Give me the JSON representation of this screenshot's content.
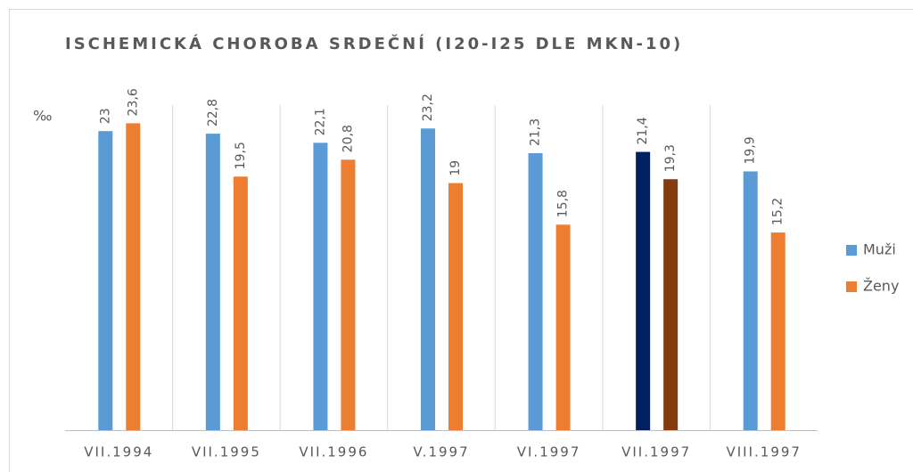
{
  "chart_data": {
    "type": "bar",
    "title": "ISCHEMICKÁ CHOROBA SRDEČNÍ (I20-I25 DLE MKN-10)",
    "y_label": "‰",
    "categories": [
      "VII.1994",
      "VII.1995",
      "VII.1996",
      "V.1997",
      "VI.1997",
      "VII.1997",
      "VIII.1997"
    ],
    "series": [
      {
        "name": "Muži",
        "color": "#5b9bd5",
        "colors": [
          "#5b9bd5",
          "#5b9bd5",
          "#5b9bd5",
          "#5b9bd5",
          "#5b9bd5",
          "#002060",
          "#5b9bd5"
        ],
        "values": [
          23,
          22.8,
          22.1,
          23.2,
          21.3,
          21.4,
          19.9
        ],
        "value_labels": [
          "23",
          "22,8",
          "22,1",
          "23,2",
          "21,3",
          "21,4",
          "19,9"
        ]
      },
      {
        "name": "Ženy",
        "color": "#ed7d31",
        "colors": [
          "#ed7d31",
          "#ed7d31",
          "#ed7d31",
          "#ed7d31",
          "#ed7d31",
          "#843c0c",
          "#ed7d31"
        ],
        "values": [
          23.6,
          19.5,
          20.8,
          19,
          15.8,
          19.3,
          15.2
        ],
        "value_labels": [
          "23,6",
          "19,5",
          "20,8",
          "19",
          "15,8",
          "19,3",
          "15,2"
        ]
      }
    ],
    "ylim": [
      0,
      25
    ],
    "legend": "right"
  }
}
